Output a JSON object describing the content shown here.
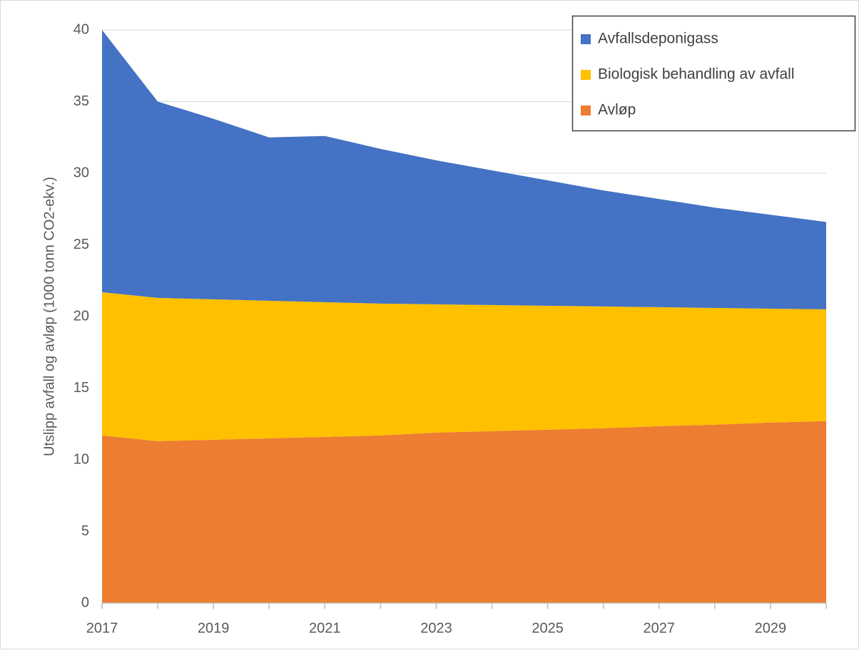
{
  "chart_data": {
    "type": "stacked_area",
    "ylabel": "Utslipp avfall og avløp (1000 tonn CO2-ekv.)",
    "x": [
      2017,
      2018,
      2019,
      2020,
      2021,
      2022,
      2023,
      2024,
      2025,
      2026,
      2027,
      2028,
      2029,
      2030
    ],
    "series": [
      {
        "name": "Avfallsdeponigass",
        "color": "#4472c4",
        "values": [
          18.3,
          13.7,
          12.6,
          11.4,
          11.6,
          10.8,
          10.05,
          9.4,
          8.75,
          8.1,
          7.55,
          7.0,
          6.55,
          6.1
        ]
      },
      {
        "name": "Biologisk behandling av avfall",
        "color": "#ffc000",
        "values": [
          10.0,
          10.0,
          9.8,
          9.6,
          9.4,
          9.2,
          8.95,
          8.8,
          8.65,
          8.5,
          8.3,
          8.15,
          7.95,
          7.8
        ]
      },
      {
        "name": "Avløp",
        "color": "#ed7d31",
        "values": [
          11.7,
          11.3,
          11.4,
          11.5,
          11.6,
          11.7,
          11.9,
          12.0,
          12.1,
          12.2,
          12.35,
          12.45,
          12.6,
          12.7
        ]
      }
    ],
    "xlim": [
      2017,
      2030
    ],
    "xticks": [
      2017,
      2019,
      2021,
      2023,
      2025,
      2027,
      2029
    ],
    "ylim": [
      0,
      40
    ],
    "yticks": [
      0,
      5,
      10,
      15,
      20,
      25,
      30,
      35,
      40
    ],
    "grid": true,
    "legend": "top-right"
  }
}
